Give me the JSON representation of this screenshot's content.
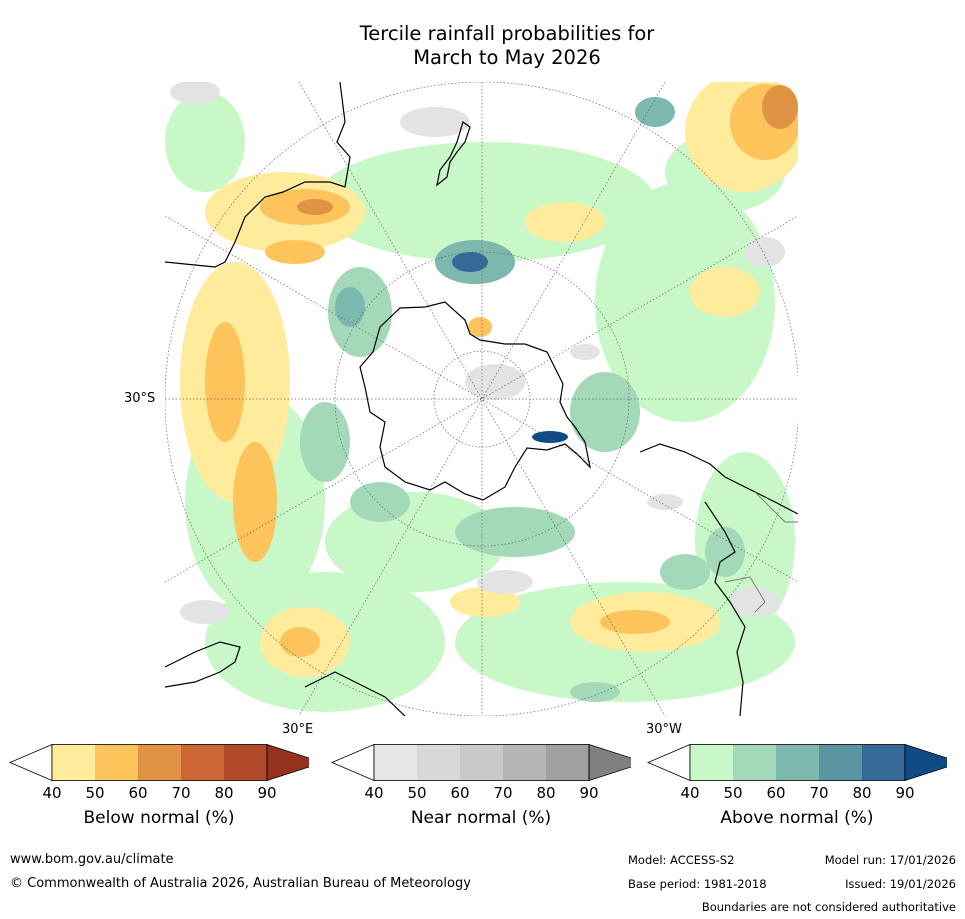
{
  "title_line1": "Tercile rainfall probabilities for",
  "title_line2": "March to May 2026",
  "map": {
    "lat_label": "30°S",
    "lon_label_east": "30°E",
    "lon_label_west": "30°W"
  },
  "colorbars": [
    {
      "label": "Below normal (%)",
      "ticks": [
        "40",
        "50",
        "60",
        "70",
        "80",
        "90"
      ],
      "colors": [
        "#ffffff",
        "#feeb9c",
        "#fdc45b",
        "#e09245",
        "#cd6635",
        "#b04a2a",
        "#93331f"
      ]
    },
    {
      "label": "Near normal (%)",
      "ticks": [
        "40",
        "50",
        "60",
        "70",
        "80",
        "90"
      ],
      "colors": [
        "#ffffff",
        "#e6e6e6",
        "#d8d8d8",
        "#c9c9c9",
        "#b5b5b5",
        "#a0a0a0",
        "#808080"
      ]
    },
    {
      "label": "Above normal (%)",
      "ticks": [
        "40",
        "50",
        "60",
        "70",
        "80",
        "90"
      ],
      "colors": [
        "#ffffff",
        "#c8f7c8",
        "#a3d9b9",
        "#7cb8ad",
        "#5a93a1",
        "#346998",
        "#114b85"
      ]
    }
  ],
  "footer": {
    "url": "www.bom.gov.au/climate",
    "copyright": "© Commonwealth of Australia 2026, Australian Bureau of Meteorology",
    "model": "Model: ACCESS-S2",
    "base_period": "Base period: 1981-2018",
    "model_run": "Model run: 17/01/2026",
    "issued": "Issued: 19/01/2026",
    "disclaimer": "Boundaries are not considered authoritative"
  }
}
